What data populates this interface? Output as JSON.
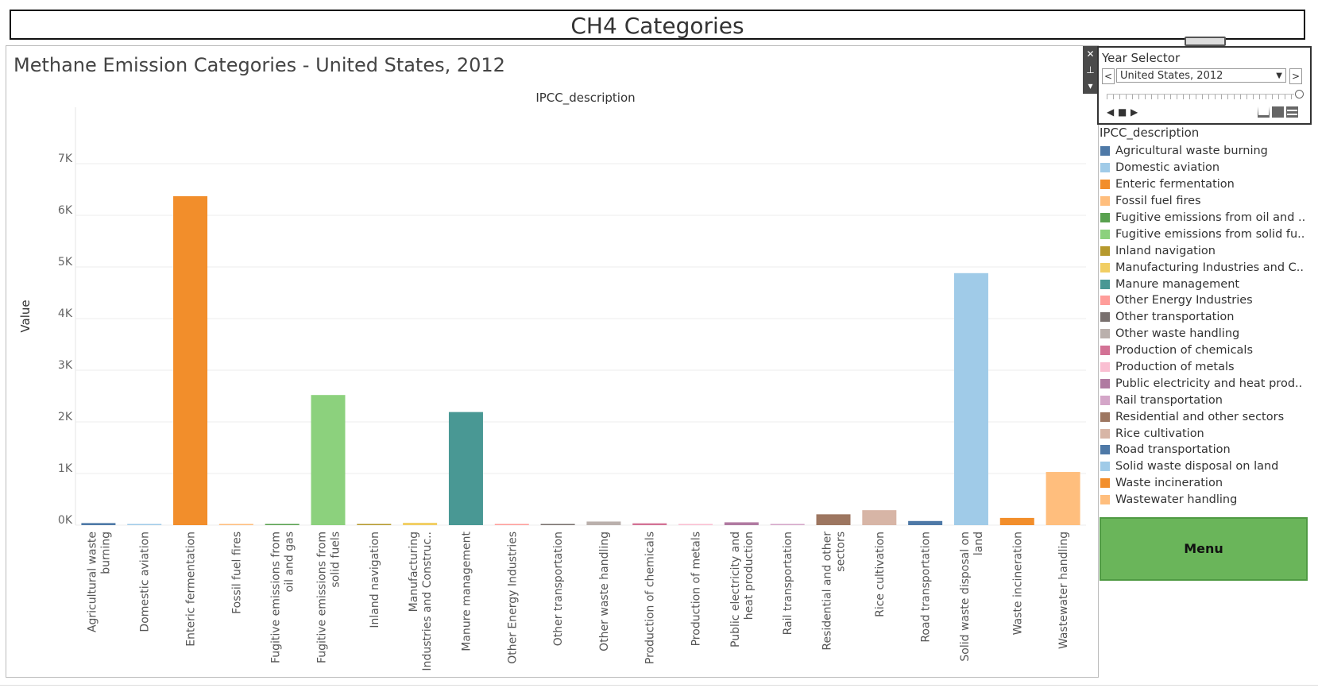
{
  "dashboard_title": "CH4 Categories",
  "floater_controls": {
    "close": "✕",
    "pin": "⊥",
    "more": "▾"
  },
  "year_selector": {
    "title": "Year Selector",
    "selected": "United States, 2012",
    "prev": "<",
    "next": ">"
  },
  "menu_button": {
    "label": "Menu"
  },
  "colors": {
    "accent_menu": "#6ab55a"
  },
  "chart_data": {
    "type": "bar",
    "title": "Methane Emission Categories - United States, 2012",
    "column_header": "IPCC_description",
    "ylabel": "Value",
    "xlabel": "",
    "ylim": [
      0,
      7500
    ],
    "yticks": [
      0,
      1000,
      2000,
      3000,
      4000,
      5000,
      6000,
      7000
    ],
    "ytick_labels": [
      "0K",
      "1K",
      "2K",
      "3K",
      "4K",
      "5K",
      "6K",
      "7K"
    ],
    "grid": true,
    "legend_position": "right",
    "categories": [
      "Agricultural waste burning",
      "Domestic aviation",
      "Enteric fermentation",
      "Fossil fuel fires",
      "Fugitive emissions from oil and gas",
      "Fugitive emissions from solid fuels",
      "Inland navigation",
      "Manufacturing Industries and Construc..",
      "Manure management",
      "Other Energy Industries",
      "Other transportation",
      "Other waste handling",
      "Production of chemicals",
      "Production of metals",
      "Public electricity and heat production",
      "Rail transportation",
      "Residential and other sectors",
      "Rice cultivation",
      "Road transportation",
      "Solid waste disposal on land",
      "Waste incineration",
      "Wastewater handling"
    ],
    "tick_lines": [
      [
        "Agricultural waste",
        "burning"
      ],
      [
        "Domestic aviation"
      ],
      [
        "Enteric fermentation"
      ],
      [
        "Fossil fuel fires"
      ],
      [
        "Fugitive emissions from",
        "oil and gas"
      ],
      [
        "Fugitive emissions from",
        "solid fuels"
      ],
      [
        "Inland navigation"
      ],
      [
        "Manufacturing",
        "Industries and Construc.."
      ],
      [
        "Manure management"
      ],
      [
        "Other Energy Industries"
      ],
      [
        "Other transportation"
      ],
      [
        "Other waste handling"
      ],
      [
        "Production of chemicals"
      ],
      [
        "Production of metals"
      ],
      [
        "Public electricity and",
        "heat production"
      ],
      [
        "Rail transportation"
      ],
      [
        "Residential and other",
        "sectors"
      ],
      [
        "Rice cultivation"
      ],
      [
        "Road transportation"
      ],
      [
        "Solid waste disposal on",
        "land"
      ],
      [
        "Waste incineration"
      ],
      [
        "Wastewater handling"
      ]
    ],
    "values": [
      40,
      5,
      6370,
      15,
      5,
      2520,
      5,
      45,
      2190,
      20,
      5,
      70,
      35,
      5,
      55,
      5,
      210,
      290,
      80,
      4880,
      140,
      1030
    ],
    "colors": [
      "#4e79a7",
      "#a0cbe8",
      "#f28e2b",
      "#ffbe7d",
      "#59a14f",
      "#8cd17d",
      "#b6992d",
      "#f1ce63",
      "#499894",
      "#ff9d9a",
      "#79706e",
      "#bab0ac",
      "#d37295",
      "#fabfd2",
      "#b07aa1",
      "#d4a6c8",
      "#9d7660",
      "#d7b5a6",
      "#4e79a7",
      "#a0cbe8",
      "#f28e2b",
      "#ffbe7d"
    ],
    "legend": {
      "title": "IPCC_description",
      "entries": [
        "Agricultural waste burning",
        "Domestic aviation",
        "Enteric fermentation",
        "Fossil fuel fires",
        "Fugitive emissions from oil and ..",
        "Fugitive emissions from solid fu..",
        "Inland navigation",
        "Manufacturing Industries and C..",
        "Manure management",
        "Other Energy Industries",
        "Other transportation",
        "Other waste handling",
        "Production of chemicals",
        "Production of metals",
        "Public electricity and heat prod..",
        "Rail transportation",
        "Residential and other sectors",
        "Rice cultivation",
        "Road transportation",
        "Solid waste disposal on land",
        "Waste incineration",
        "Wastewater handling"
      ]
    }
  }
}
